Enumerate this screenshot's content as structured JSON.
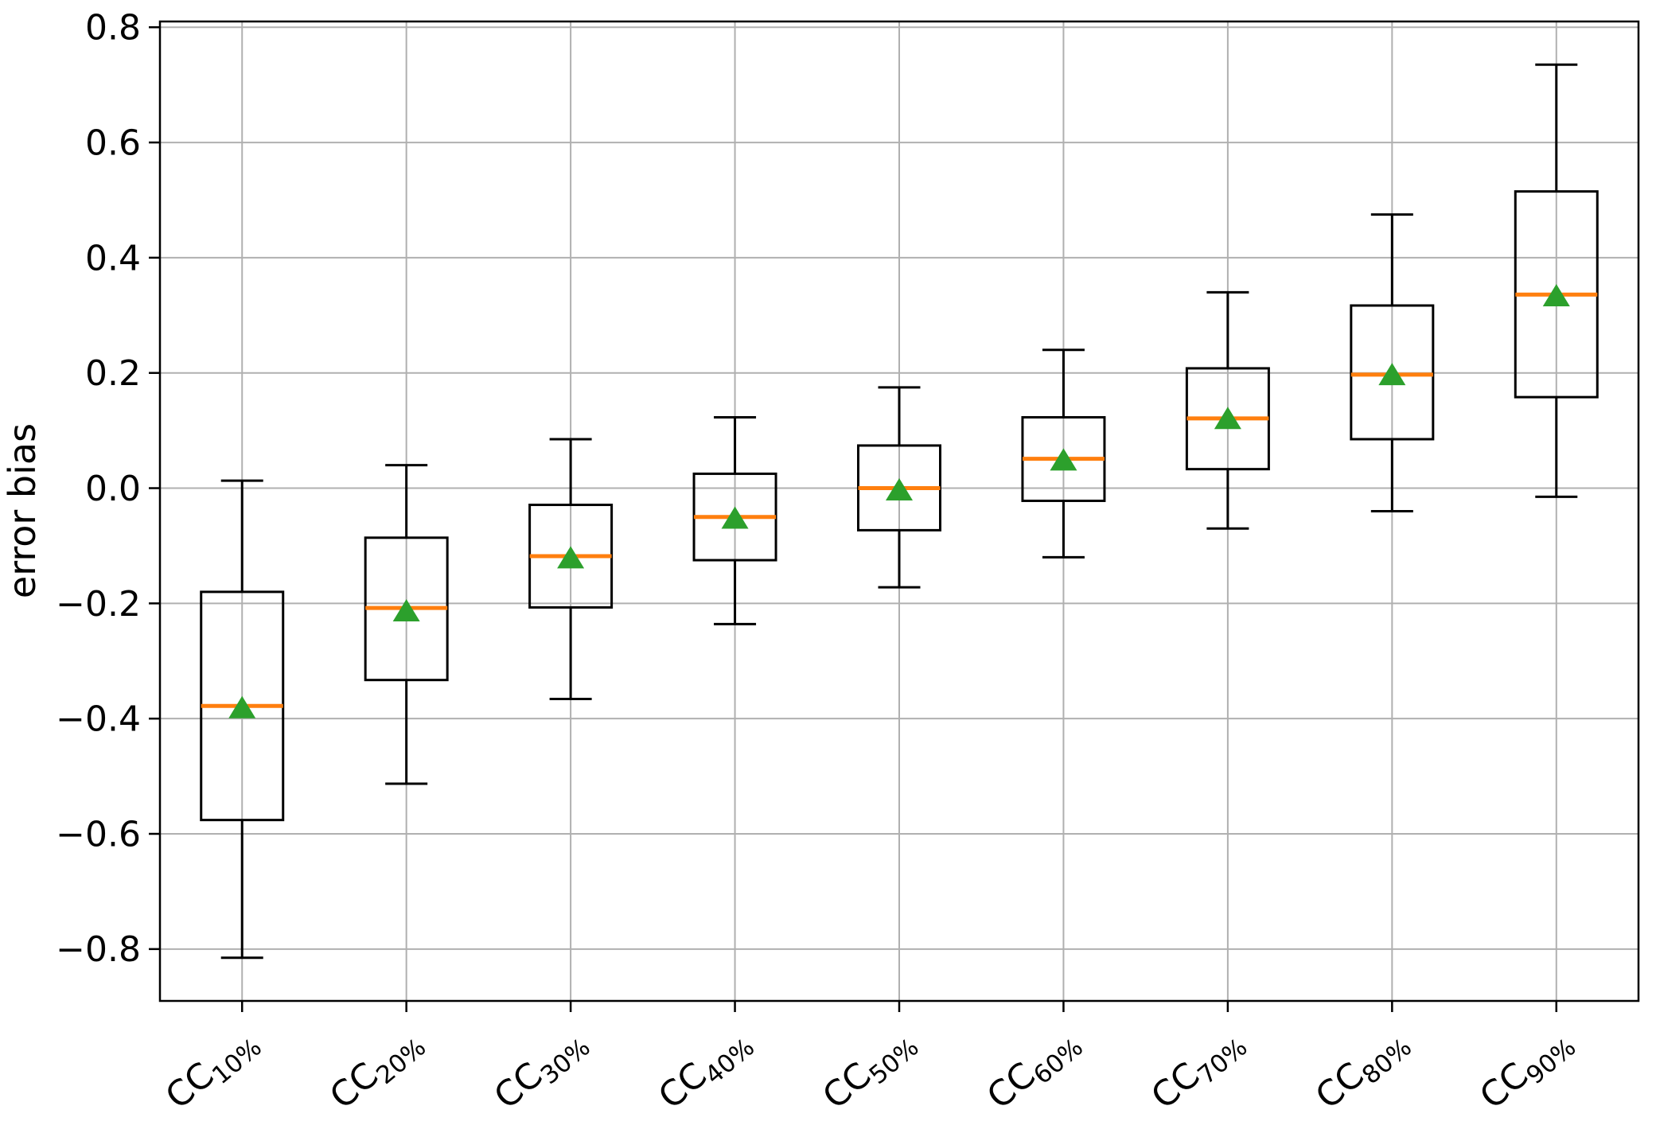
{
  "chart_data": {
    "type": "boxplot",
    "title": "",
    "xlabel": "",
    "ylabel": "error bias",
    "grid": true,
    "legend": null,
    "ylim": [
      -0.89,
      0.81
    ],
    "tick_rotation_deg": 40,
    "y_ticks": [
      {
        "value": 0.8,
        "label": "0.8"
      },
      {
        "value": 0.6,
        "label": "0.6"
      },
      {
        "value": 0.4,
        "label": "0.4"
      },
      {
        "value": 0.2,
        "label": "0.2"
      },
      {
        "value": 0.0,
        "label": "0.0"
      },
      {
        "value": -0.2,
        "label": "−0.2"
      },
      {
        "value": -0.4,
        "label": "−0.4"
      },
      {
        "value": -0.6,
        "label": "−0.6"
      },
      {
        "value": -0.8,
        "label": "−0.8"
      }
    ],
    "categories": [
      {
        "base": "CC",
        "sub": "10%"
      },
      {
        "base": "CC",
        "sub": "20%"
      },
      {
        "base": "CC",
        "sub": "30%"
      },
      {
        "base": "CC",
        "sub": "40%"
      },
      {
        "base": "CC",
        "sub": "50%"
      },
      {
        "base": "CC",
        "sub": "60%"
      },
      {
        "base": "CC",
        "sub": "70%"
      },
      {
        "base": "CC",
        "sub": "80%"
      },
      {
        "base": "CC",
        "sub": "90%"
      }
    ],
    "series": [
      {
        "label": "CC 10%",
        "whisker_low": -0.815,
        "q1": -0.576,
        "median": -0.378,
        "mean": -0.38,
        "q3": -0.18,
        "whisker_high": 0.013
      },
      {
        "label": "CC 20%",
        "whisker_low": -0.513,
        "q1": -0.333,
        "median": -0.208,
        "mean": -0.212,
        "q3": -0.086,
        "whisker_high": 0.04
      },
      {
        "label": "CC 30%",
        "whisker_low": -0.366,
        "q1": -0.207,
        "median": -0.118,
        "mean": -0.12,
        "q3": -0.029,
        "whisker_high": 0.085
      },
      {
        "label": "CC 40%",
        "whisker_low": -0.236,
        "q1": -0.125,
        "median": -0.05,
        "mean": -0.051,
        "q3": 0.025,
        "whisker_high": 0.123
      },
      {
        "label": "CC 50%",
        "whisker_low": -0.172,
        "q1": -0.073,
        "median": 0.0,
        "mean": -0.002,
        "q3": 0.074,
        "whisker_high": 0.175
      },
      {
        "label": "CC 60%",
        "whisker_low": -0.12,
        "q1": -0.022,
        "median": 0.051,
        "mean": 0.05,
        "q3": 0.123,
        "whisker_high": 0.24
      },
      {
        "label": "CC 70%",
        "whisker_low": -0.07,
        "q1": 0.033,
        "median": 0.121,
        "mean": 0.122,
        "q3": 0.208,
        "whisker_high": 0.34
      },
      {
        "label": "CC 80%",
        "whisker_low": -0.04,
        "q1": 0.085,
        "median": 0.197,
        "mean": 0.198,
        "q3": 0.317,
        "whisker_high": 0.475
      },
      {
        "label": "CC 90%",
        "whisker_low": -0.015,
        "q1": 0.158,
        "median": 0.336,
        "mean": 0.335,
        "q3": 0.515,
        "whisker_high": 0.735
      }
    ],
    "colors": {
      "box_edge": "#000000",
      "median_line": "#ff7f0e",
      "mean_marker": "#2ca02c",
      "grid_line": "#b0b0b0",
      "axis": "#000000",
      "background": "#ffffff"
    }
  }
}
